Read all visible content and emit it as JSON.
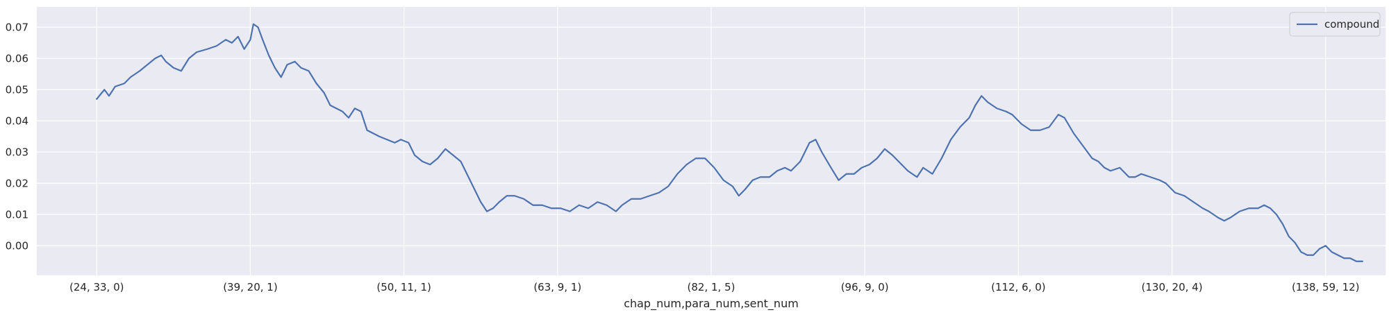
{
  "chart_data": {
    "type": "line",
    "title": "",
    "xlabel": "chap_num,para_num,sent_num",
    "ylabel": "",
    "x_tick_labels": [
      "(24, 33, 0)",
      "(39, 20, 1)",
      "(50, 11, 1)",
      "(63, 9, 1)",
      "(82, 1, 5)",
      "(96, 9, 0)",
      "(112, 6, 0)",
      "(130, 20, 4)",
      "(138, 59, 12)"
    ],
    "x_tick_positions": [
      0,
      1,
      2,
      3,
      4,
      5,
      6,
      7,
      8
    ],
    "xlim": [
      -0.39,
      8.39
    ],
    "y_tick_labels": [
      "0.00",
      "0.01",
      "0.02",
      "0.03",
      "0.04",
      "0.05",
      "0.06",
      "0.07"
    ],
    "y_ticks": [
      0.0,
      0.01,
      0.02,
      0.03,
      0.04,
      0.05,
      0.06,
      0.07
    ],
    "ylim": [
      -0.0095,
      0.0765
    ],
    "grid": true,
    "legend": {
      "position": "top-right",
      "entries": [
        "compound"
      ]
    },
    "colors": {
      "background": "#eaeaf2",
      "grid": "#ffffff",
      "line": "#4c72b0"
    },
    "series": [
      {
        "name": "compound",
        "color": "#4c72b0",
        "points": [
          [
            0.0,
            0.047
          ],
          [
            0.05,
            0.05
          ],
          [
            0.08,
            0.048
          ],
          [
            0.12,
            0.051
          ],
          [
            0.18,
            0.052
          ],
          [
            0.22,
            0.054
          ],
          [
            0.28,
            0.056
          ],
          [
            0.33,
            0.058
          ],
          [
            0.38,
            0.06
          ],
          [
            0.42,
            0.061
          ],
          [
            0.45,
            0.059
          ],
          [
            0.5,
            0.057
          ],
          [
            0.55,
            0.056
          ],
          [
            0.6,
            0.06
          ],
          [
            0.65,
            0.062
          ],
          [
            0.72,
            0.063
          ],
          [
            0.78,
            0.064
          ],
          [
            0.84,
            0.066
          ],
          [
            0.88,
            0.065
          ],
          [
            0.92,
            0.067
          ],
          [
            0.96,
            0.063
          ],
          [
            1.0,
            0.066
          ],
          [
            1.02,
            0.071
          ],
          [
            1.05,
            0.07
          ],
          [
            1.08,
            0.066
          ],
          [
            1.12,
            0.061
          ],
          [
            1.16,
            0.057
          ],
          [
            1.2,
            0.054
          ],
          [
            1.24,
            0.058
          ],
          [
            1.29,
            0.059
          ],
          [
            1.33,
            0.057
          ],
          [
            1.38,
            0.056
          ],
          [
            1.43,
            0.052
          ],
          [
            1.48,
            0.049
          ],
          [
            1.52,
            0.045
          ],
          [
            1.56,
            0.044
          ],
          [
            1.6,
            0.043
          ],
          [
            1.64,
            0.041
          ],
          [
            1.68,
            0.044
          ],
          [
            1.72,
            0.043
          ],
          [
            1.76,
            0.037
          ],
          [
            1.8,
            0.036
          ],
          [
            1.84,
            0.035
          ],
          [
            1.89,
            0.034
          ],
          [
            1.94,
            0.033
          ],
          [
            1.98,
            0.034
          ],
          [
            2.03,
            0.033
          ],
          [
            2.07,
            0.029
          ],
          [
            2.12,
            0.027
          ],
          [
            2.17,
            0.026
          ],
          [
            2.22,
            0.028
          ],
          [
            2.27,
            0.031
          ],
          [
            2.32,
            0.029
          ],
          [
            2.37,
            0.027
          ],
          [
            2.42,
            0.022
          ],
          [
            2.46,
            0.018
          ],
          [
            2.5,
            0.014
          ],
          [
            2.54,
            0.011
          ],
          [
            2.58,
            0.012
          ],
          [
            2.62,
            0.014
          ],
          [
            2.67,
            0.016
          ],
          [
            2.72,
            0.016
          ],
          [
            2.78,
            0.015
          ],
          [
            2.84,
            0.013
          ],
          [
            2.9,
            0.013
          ],
          [
            2.96,
            0.012
          ],
          [
            3.02,
            0.012
          ],
          [
            3.08,
            0.011
          ],
          [
            3.14,
            0.013
          ],
          [
            3.2,
            0.012
          ],
          [
            3.26,
            0.014
          ],
          [
            3.32,
            0.013
          ],
          [
            3.38,
            0.011
          ],
          [
            3.42,
            0.013
          ],
          [
            3.48,
            0.015
          ],
          [
            3.54,
            0.015
          ],
          [
            3.6,
            0.016
          ],
          [
            3.66,
            0.017
          ],
          [
            3.72,
            0.019
          ],
          [
            3.78,
            0.023
          ],
          [
            3.84,
            0.026
          ],
          [
            3.9,
            0.028
          ],
          [
            3.96,
            0.028
          ],
          [
            4.02,
            0.025
          ],
          [
            4.08,
            0.021
          ],
          [
            4.14,
            0.019
          ],
          [
            4.18,
            0.016
          ],
          [
            4.22,
            0.018
          ],
          [
            4.27,
            0.021
          ],
          [
            4.32,
            0.022
          ],
          [
            4.38,
            0.022
          ],
          [
            4.43,
            0.024
          ],
          [
            4.48,
            0.025
          ],
          [
            4.52,
            0.024
          ],
          [
            4.58,
            0.027
          ],
          [
            4.64,
            0.033
          ],
          [
            4.68,
            0.034
          ],
          [
            4.72,
            0.03
          ],
          [
            4.78,
            0.025
          ],
          [
            4.83,
            0.021
          ],
          [
            4.88,
            0.023
          ],
          [
            4.93,
            0.023
          ],
          [
            4.98,
            0.025
          ],
          [
            5.03,
            0.026
          ],
          [
            5.08,
            0.028
          ],
          [
            5.13,
            0.031
          ],
          [
            5.18,
            0.029
          ],
          [
            5.24,
            0.026
          ],
          [
            5.28,
            0.024
          ],
          [
            5.34,
            0.022
          ],
          [
            5.38,
            0.025
          ],
          [
            5.44,
            0.023
          ],
          [
            5.5,
            0.028
          ],
          [
            5.56,
            0.034
          ],
          [
            5.62,
            0.038
          ],
          [
            5.68,
            0.041
          ],
          [
            5.72,
            0.045
          ],
          [
            5.76,
            0.048
          ],
          [
            5.8,
            0.046
          ],
          [
            5.86,
            0.044
          ],
          [
            5.92,
            0.043
          ],
          [
            5.96,
            0.042
          ],
          [
            6.02,
            0.039
          ],
          [
            6.08,
            0.037
          ],
          [
            6.14,
            0.037
          ],
          [
            6.2,
            0.038
          ],
          [
            6.26,
            0.042
          ],
          [
            6.3,
            0.041
          ],
          [
            6.36,
            0.036
          ],
          [
            6.42,
            0.032
          ],
          [
            6.48,
            0.028
          ],
          [
            6.52,
            0.027
          ],
          [
            6.56,
            0.025
          ],
          [
            6.6,
            0.024
          ],
          [
            6.66,
            0.025
          ],
          [
            6.72,
            0.022
          ],
          [
            6.76,
            0.022
          ],
          [
            6.8,
            0.023
          ],
          [
            6.86,
            0.022
          ],
          [
            6.92,
            0.021
          ],
          [
            6.96,
            0.02
          ],
          [
            7.02,
            0.017
          ],
          [
            7.08,
            0.016
          ],
          [
            7.14,
            0.014
          ],
          [
            7.2,
            0.012
          ],
          [
            7.24,
            0.011
          ],
          [
            7.3,
            0.009
          ],
          [
            7.34,
            0.008
          ],
          [
            7.38,
            0.009
          ],
          [
            7.44,
            0.011
          ],
          [
            7.5,
            0.012
          ],
          [
            7.56,
            0.012
          ],
          [
            7.6,
            0.013
          ],
          [
            7.64,
            0.012
          ],
          [
            7.68,
            0.01
          ],
          [
            7.72,
            0.007
          ],
          [
            7.76,
            0.003
          ],
          [
            7.8,
            0.001
          ],
          [
            7.84,
            -0.002
          ],
          [
            7.88,
            -0.003
          ],
          [
            7.92,
            -0.003
          ],
          [
            7.96,
            -0.001
          ],
          [
            8.0,
            0.0
          ],
          [
            8.04,
            -0.002
          ],
          [
            8.08,
            -0.003
          ],
          [
            8.12,
            -0.004
          ],
          [
            8.16,
            -0.004
          ],
          [
            8.2,
            -0.005
          ],
          [
            8.24,
            -0.005
          ]
        ]
      }
    ]
  }
}
